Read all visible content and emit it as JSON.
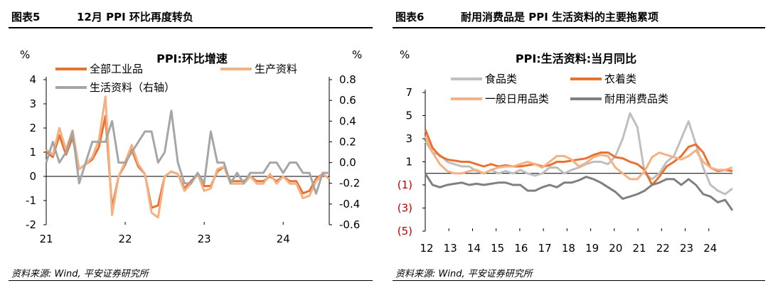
{
  "panels": [
    {
      "number": "图表5",
      "title": "12月 PPI 环比再度转负",
      "source": "资料来源: Wind, 平安证券研究所"
    },
    {
      "number": "图表6",
      "title": "耐用消费品是 PPI 生活资料的主要拖累项",
      "source": "资料来源: Wind, 平安证券研究所"
    }
  ],
  "chart_data": [
    {
      "type": "line",
      "title": "PPI:环比增速",
      "ylabel_left": "%",
      "ylabel_right": "%",
      "ylim": [
        -2,
        4
      ],
      "y2lim": [
        -0.6,
        0.8
      ],
      "yticks": [
        "4",
        "3",
        "2",
        "1",
        "0",
        "-1",
        "-2"
      ],
      "y2ticks": [
        "0.8",
        "0.6",
        "0.4",
        "0.2",
        "0.0",
        "-0.2",
        "-0.4",
        "-0.6"
      ],
      "xticks": [
        "21",
        "22",
        "23",
        "24"
      ],
      "grid": false,
      "legend_position": "top",
      "series": [
        {
          "name": "全部工业品",
          "color": "#E97132",
          "axis": "left",
          "values": [
            1.0,
            0.8,
            1.7,
            0.9,
            1.6,
            0.3,
            0.5,
            0.7,
            1.2,
            2.5,
            -1.3,
            0.0,
            0.5,
            1.1,
            0.4,
            0.1,
            -1.3,
            -1.2,
            0.0,
            0.2,
            0.1,
            -0.5,
            -0.2,
            0.1,
            -0.4,
            -0.4,
            0.2,
            0.4,
            -0.2,
            -0.2,
            -0.2,
            0.0,
            -0.2,
            -0.2,
            0.0,
            -0.2,
            0.0,
            -0.2,
            -0.2,
            -0.7,
            -0.6,
            -0.1,
            0.1,
            -0.1
          ]
        },
        {
          "name": "生产资料",
          "color": "#F4B183",
          "axis": "left",
          "values": [
            1.1,
            0.9,
            2.0,
            1.1,
            1.9,
            0.3,
            0.5,
            0.8,
            1.5,
            3.3,
            -1.6,
            0.0,
            0.6,
            1.3,
            0.5,
            0.1,
            -1.5,
            -1.7,
            0.0,
            0.2,
            0.1,
            -0.6,
            -0.3,
            0.1,
            -0.6,
            -0.5,
            0.3,
            0.4,
            -0.3,
            -0.3,
            -0.3,
            0.0,
            -0.3,
            -0.3,
            0.1,
            -0.3,
            0.0,
            -0.3,
            -0.3,
            -0.9,
            -0.8,
            -0.2,
            0.1,
            -0.1
          ]
        },
        {
          "name": "生活资料（右轴）",
          "color": "#A6A6A6",
          "axis": "right",
          "values": [
            0.0,
            0.2,
            0.0,
            0.1,
            0.3,
            -0.2,
            0.0,
            0.2,
            0.2,
            0.2,
            0.4,
            0.0,
            0.0,
            0.1,
            0.2,
            0.3,
            0.3,
            0.0,
            0.1,
            0.5,
            0.0,
            -0.2,
            -0.2,
            -0.1,
            -0.2,
            0.3,
            0.0,
            0.0,
            -0.2,
            -0.1,
            -0.2,
            -0.1,
            -0.1,
            -0.1,
            0.0,
            0.0,
            -0.1,
            0.0,
            0.0,
            -0.1,
            -0.1,
            -0.3,
            -0.1,
            -0.1
          ]
        }
      ]
    },
    {
      "type": "line",
      "title": "PPI:生活资料:当月同比",
      "ylabel": "%",
      "ylim": [
        -5,
        7
      ],
      "yticks": [
        "7",
        "5",
        "3",
        "1",
        "(1)",
        "(3)",
        "(5)"
      ],
      "xticks": [
        "12",
        "13",
        "14",
        "15",
        "16",
        "17",
        "18",
        "19",
        "20",
        "21",
        "22",
        "23",
        "24"
      ],
      "grid": false,
      "legend_position": "top",
      "series": [
        {
          "name": "食品类",
          "color": "#BFBFBF",
          "values": [
            2.8,
            1.8,
            1.6,
            1.0,
            0.8,
            0.6,
            0.6,
            0.2,
            0.0,
            0.3,
            0.0,
            0.2,
            0.0,
            0.3,
            0.0,
            -0.2,
            0.0,
            0.5,
            0.5,
            0.0,
            0.3,
            0.5,
            0.8,
            1.0,
            1.0,
            0.8,
            1.5,
            3.0,
            5.2,
            4.0,
            0.0,
            -0.5,
            0.0,
            1.0,
            1.5,
            3.0,
            4.5,
            2.5,
            0.5,
            -1.0,
            -1.5,
            -1.8,
            -1.3
          ]
        },
        {
          "name": "衣着类",
          "color": "#E97132",
          "values": [
            3.8,
            2.2,
            1.5,
            1.2,
            1.1,
            1.0,
            1.0,
            0.8,
            0.6,
            0.8,
            0.6,
            0.7,
            0.6,
            0.6,
            0.7,
            0.8,
            0.6,
            0.7,
            1.0,
            1.0,
            1.1,
            1.2,
            1.3,
            1.6,
            1.8,
            1.8,
            1.4,
            1.3,
            1.0,
            0.8,
            0.3,
            -1.0,
            -0.3,
            0.6,
            1.0,
            1.5,
            2.3,
            2.5,
            1.8,
            0.5,
            0.2,
            0.3,
            0.2
          ]
        },
        {
          "name": "一般日用品类",
          "color": "#F4B183",
          "values": [
            3.2,
            1.8,
            0.8,
            0.2,
            0.0,
            0.0,
            0.2,
            0.3,
            0.0,
            0.3,
            0.5,
            0.6,
            0.6,
            0.8,
            1.0,
            0.8,
            0.5,
            1.0,
            1.5,
            1.5,
            1.2,
            0.6,
            0.9,
            1.4,
            1.6,
            1.5,
            0.5,
            0.0,
            -0.5,
            -0.5,
            0.2,
            1.4,
            1.8,
            1.6,
            1.4,
            1.2,
            1.5,
            2.0,
            1.0,
            0.5,
            0.3,
            0.3,
            0.5
          ]
        },
        {
          "name": "耐用消费品类",
          "color": "#808080",
          "values": [
            0.0,
            -1.0,
            -1.2,
            -1.0,
            -0.9,
            -0.8,
            -1.0,
            -0.9,
            -1.0,
            -0.9,
            -0.8,
            -0.8,
            -1.0,
            -1.0,
            -1.5,
            -1.5,
            -1.2,
            -1.0,
            -1.2,
            -0.8,
            -0.8,
            -0.6,
            -0.3,
            -0.5,
            -0.8,
            -1.2,
            -1.6,
            -2.2,
            -2.0,
            -1.8,
            -1.5,
            -1.0,
            -0.8,
            -0.5,
            -0.5,
            -1.0,
            -0.5,
            -1.0,
            -1.8,
            -2.0,
            -2.5,
            -2.3,
            -3.2
          ]
        }
      ]
    }
  ]
}
